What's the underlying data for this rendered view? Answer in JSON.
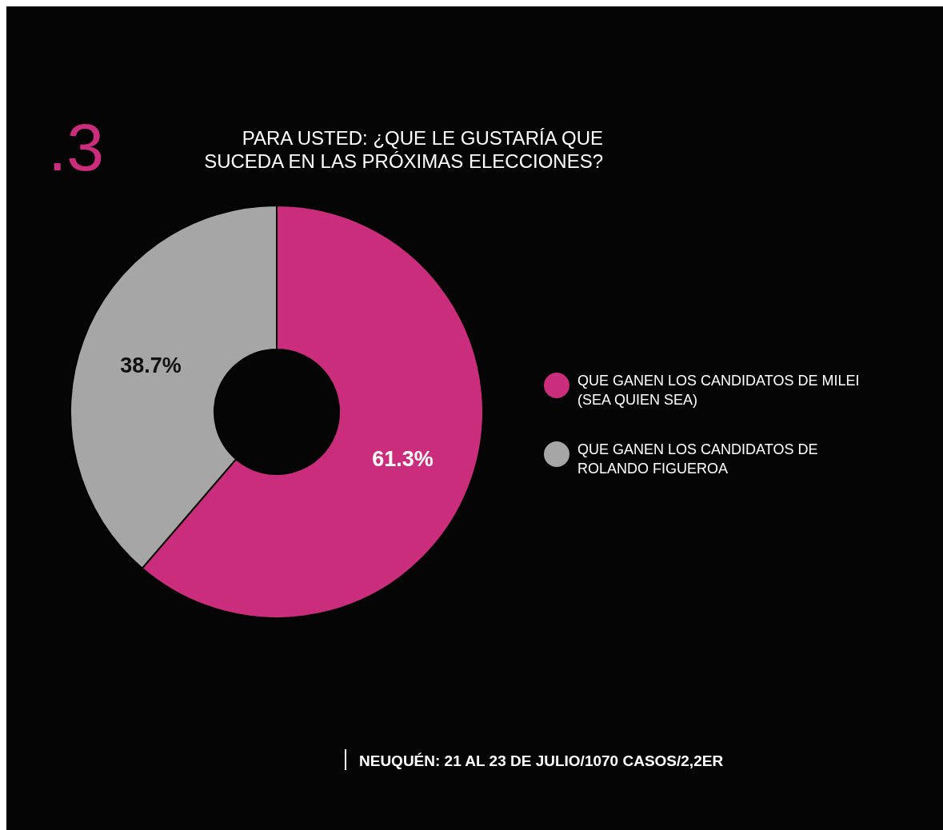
{
  "chart_data": {
    "type": "donut",
    "title": "PARA USTED: ¿QUE LE GUSTARÍA QUE SUCEDA EN LAS PRÓXIMAS ELECCIONES?",
    "categories": [
      "QUE GANEN LOS CANDIDATOS DE MILEI (SEA QUIEN SEA)",
      "QUE GANEN LOS CANDIDATOS DE ROLANDO FIGUEROA"
    ],
    "values": [
      61.3,
      38.7
    ],
    "colors": [
      "#c92d7b",
      "#a6a6a6"
    ],
    "value_labels": [
      "61.3%",
      "38.7%"
    ],
    "legend": "right",
    "annotations": [
      ".3",
      "NEUQUÉN: 21 AL 23 DE JULIO/1070 CASOS/2,2ER"
    ]
  }
}
